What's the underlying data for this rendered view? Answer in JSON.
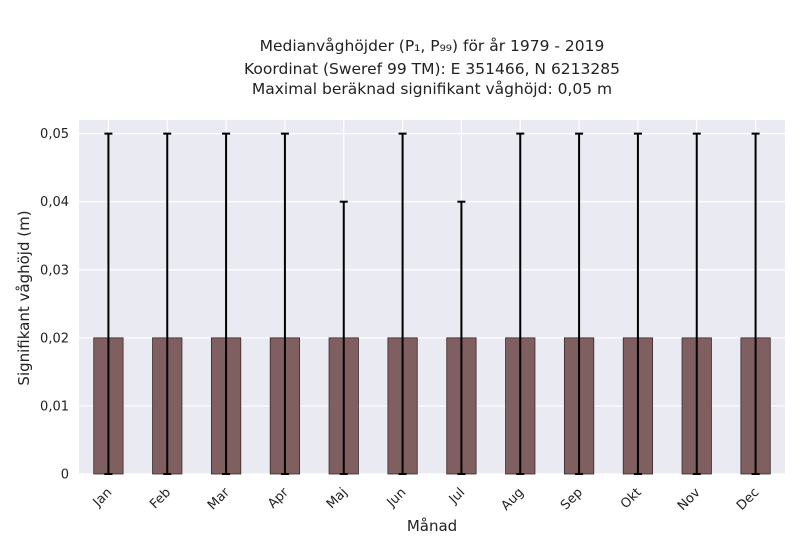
{
  "chart_data": {
    "type": "bar",
    "title_lines": [
      "Medianvåghöjder (P₁, P₉₉) för år 1979 - 2019",
      "Koordinat (Sweref 99 TM): E 351466, N 6213285",
      "Maximal beräknad signifikant våghöjd: 0,05 m"
    ],
    "xlabel": "Månad",
    "ylabel": "Signifikant våghöjd (m)",
    "categories": [
      "Jan",
      "Feb",
      "Mar",
      "Apr",
      "Maj",
      "Jun",
      "Jul",
      "Aug",
      "Sep",
      "Okt",
      "Nov",
      "Dec"
    ],
    "values": [
      0.02,
      0.02,
      0.02,
      0.02,
      0.02,
      0.02,
      0.02,
      0.02,
      0.02,
      0.02,
      0.02,
      0.02
    ],
    "err_low": [
      0,
      0,
      0,
      0,
      0,
      0,
      0,
      0,
      0,
      0,
      0,
      0
    ],
    "err_high": [
      0.05,
      0.05,
      0.05,
      0.05,
      0.04,
      0.05,
      0.04,
      0.05,
      0.05,
      0.05,
      0.05,
      0.05
    ],
    "ylim": [
      0,
      0.052
    ],
    "yticks": [
      0,
      0.01,
      0.02,
      0.03,
      0.04,
      0.05
    ],
    "ytick_labels": [
      "0",
      "0,01",
      "0,02",
      "0,03",
      "0,04",
      "0,05"
    ],
    "grid": true,
    "colors": {
      "bar": "#7f5f5f",
      "bar_edge": "#3a2a2a",
      "error": "#000000",
      "plot_bg": "#eaeaf2",
      "grid": "#ffffff"
    }
  }
}
